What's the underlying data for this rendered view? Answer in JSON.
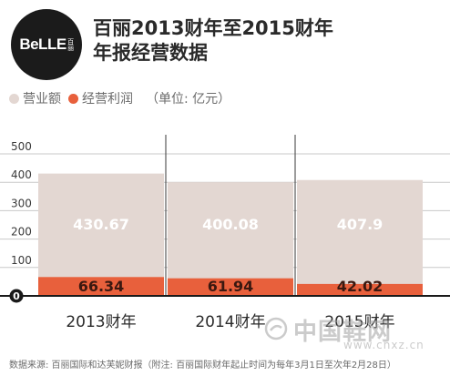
{
  "header": {
    "logo_text": "BeLLE",
    "logo_cn": "百丽",
    "title_line1": "百丽2013财年至2015财年",
    "title_line2": "年报经营数据"
  },
  "legend": {
    "items": [
      {
        "label": "营业额",
        "color": "#e3d7d2"
      },
      {
        "label": "经营利润",
        "color": "#e8603c"
      }
    ],
    "unit": "（单位: 亿元）"
  },
  "chart_data": {
    "type": "bar",
    "categories": [
      "2013财年",
      "2014财年",
      "2015财年"
    ],
    "series": [
      {
        "name": "营业额",
        "values": [
          430.67,
          400.08,
          407.9
        ],
        "labels": [
          "430.67",
          "400.08",
          "407.9"
        ],
        "color": "#e3d7d2"
      },
      {
        "name": "经营利润",
        "values": [
          66.34,
          61.94,
          42.02
        ],
        "labels": [
          "66.34",
          "61.94",
          "42.02"
        ],
        "color": "#e8603c"
      }
    ],
    "yticks": [
      "500",
      "400",
      "300",
      "200",
      "100",
      "0"
    ],
    "ylim": [
      0,
      500
    ],
    "grid": true
  },
  "footer": {
    "source": "数据来源: 百丽国际和达芙妮财报（附注: 百丽国际财年起止时间为每年3月1日至次年2月28日）"
  },
  "watermark": {
    "cn": "中国鞋网",
    "url": "www.cnxz.cn"
  }
}
